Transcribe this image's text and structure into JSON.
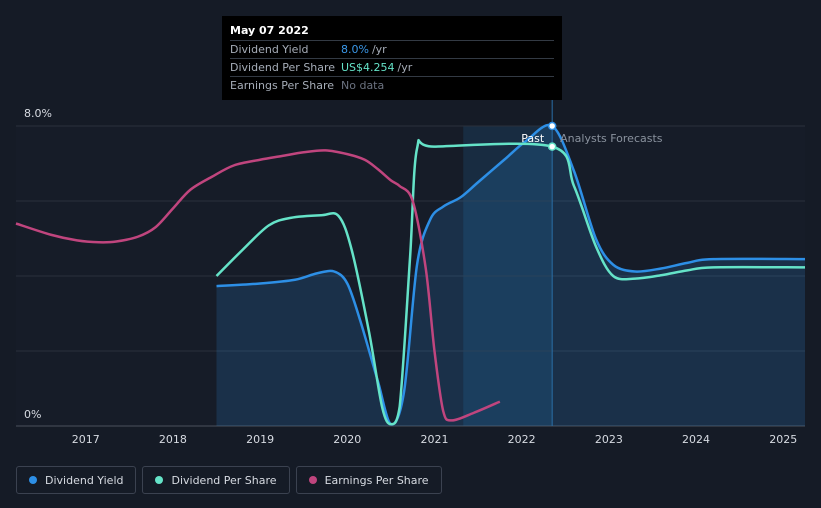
{
  "tooltip": {
    "date": "May 07 2022",
    "rows": [
      {
        "label": "Dividend Yield",
        "value": "8.0%",
        "unit": "/yr"
      },
      {
        "label": "Dividend Per Share",
        "value": "US$4.254",
        "unit": "/yr"
      },
      {
        "label": "Earnings Per Share",
        "value": "No data",
        "unit": ""
      }
    ]
  },
  "annotations": {
    "past": "Past",
    "forecast": "Analysts Forecasts"
  },
  "legend": {
    "items": [
      {
        "label": "Dividend Yield",
        "color": "#2d8fe6"
      },
      {
        "label": "Dividend Per Share",
        "color": "#65e3c8"
      },
      {
        "label": "Earnings Per Share",
        "color": "#c0457e"
      }
    ]
  },
  "chart_data": {
    "type": "line",
    "xlim": [
      2016.2,
      2025.25
    ],
    "ylim": [
      0,
      8.0
    ],
    "y_tick_labels": [
      {
        "value": 8.0,
        "label": "8.0%"
      },
      {
        "value": 0,
        "label": "0%"
      }
    ],
    "x_ticks": [
      2017,
      2018,
      2019,
      2020,
      2021,
      2022,
      2023,
      2024,
      2025
    ],
    "grid": true,
    "past_region": [
      2021.33,
      2022.35
    ],
    "current_point_x": 2022.35,
    "series": [
      {
        "name": "Dividend Yield",
        "color": "#2d8fe6",
        "fill": true,
        "points": [
          [
            2018.5,
            3.73
          ],
          [
            2019.0,
            3.8
          ],
          [
            2019.4,
            3.9
          ],
          [
            2019.65,
            4.07
          ],
          [
            2019.85,
            4.12
          ],
          [
            2020.0,
            3.8
          ],
          [
            2020.15,
            2.8
          ],
          [
            2020.35,
            1.2
          ],
          [
            2020.5,
            0.05
          ],
          [
            2020.65,
            0.9
          ],
          [
            2020.8,
            4.3
          ],
          [
            2020.95,
            5.5
          ],
          [
            2021.1,
            5.85
          ],
          [
            2021.3,
            6.1
          ],
          [
            2021.5,
            6.5
          ],
          [
            2021.8,
            7.1
          ],
          [
            2022.05,
            7.6
          ],
          [
            2022.35,
            8.0
          ],
          [
            2022.6,
            6.8
          ],
          [
            2022.85,
            5.0
          ],
          [
            2023.05,
            4.3
          ],
          [
            2023.3,
            4.12
          ],
          [
            2023.6,
            4.2
          ],
          [
            2023.9,
            4.35
          ],
          [
            2024.2,
            4.45
          ],
          [
            2025.25,
            4.45
          ]
        ]
      },
      {
        "name": "Dividend Per Share",
        "color": "#65e3c8",
        "fill": false,
        "points": [
          [
            2018.5,
            4.0
          ],
          [
            2018.8,
            4.7
          ],
          [
            2019.1,
            5.35
          ],
          [
            2019.35,
            5.55
          ],
          [
            2019.7,
            5.62
          ],
          [
            2019.9,
            5.6
          ],
          [
            2020.05,
            4.7
          ],
          [
            2020.25,
            2.5
          ],
          [
            2020.4,
            0.5
          ],
          [
            2020.5,
            0.05
          ],
          [
            2020.6,
            0.5
          ],
          [
            2020.72,
            4.5
          ],
          [
            2020.8,
            7.4
          ],
          [
            2021.0,
            7.45
          ],
          [
            2022.35,
            7.45
          ],
          [
            2022.6,
            6.4
          ],
          [
            2022.85,
            4.8
          ],
          [
            2023.05,
            4.0
          ],
          [
            2023.3,
            3.93
          ],
          [
            2023.6,
            4.02
          ],
          [
            2023.9,
            4.15
          ],
          [
            2024.2,
            4.23
          ],
          [
            2025.25,
            4.23
          ]
        ]
      },
      {
        "name": "Earnings Per Share",
        "color": "#c0457e",
        "fill": false,
        "points": [
          [
            2016.2,
            5.4
          ],
          [
            2016.6,
            5.1
          ],
          [
            2016.9,
            4.95
          ],
          [
            2017.15,
            4.9
          ],
          [
            2017.35,
            4.92
          ],
          [
            2017.6,
            5.05
          ],
          [
            2017.8,
            5.3
          ],
          [
            2018.0,
            5.8
          ],
          [
            2018.2,
            6.3
          ],
          [
            2018.45,
            6.65
          ],
          [
            2018.7,
            6.95
          ],
          [
            2019.0,
            7.1
          ],
          [
            2019.25,
            7.2
          ],
          [
            2019.5,
            7.3
          ],
          [
            2019.75,
            7.35
          ],
          [
            2020.0,
            7.25
          ],
          [
            2020.2,
            7.1
          ],
          [
            2020.35,
            6.85
          ],
          [
            2020.5,
            6.55
          ],
          [
            2020.6,
            6.4
          ],
          [
            2020.75,
            6.0
          ],
          [
            2020.9,
            4.2
          ],
          [
            2021.0,
            2.0
          ],
          [
            2021.1,
            0.4
          ],
          [
            2021.2,
            0.15
          ],
          [
            2021.45,
            0.35
          ],
          [
            2021.75,
            0.65
          ]
        ]
      }
    ]
  }
}
